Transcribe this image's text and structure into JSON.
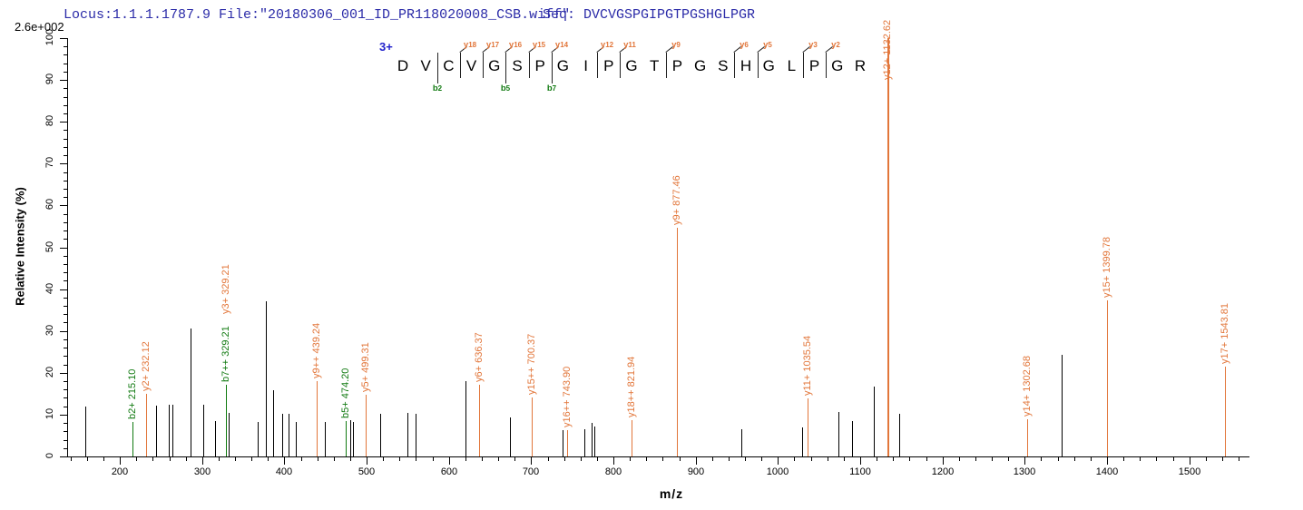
{
  "header": {
    "locus_file": "Locus:1.1.1.1787.9 File:\"20180306_001_ID_PR118020008_CSB.wiff\"",
    "seq": "Seq: DVCVGSPGIPGTPGSHGLPGR",
    "max_intensity": "2.6e+002"
  },
  "peptide": {
    "charge": "3+",
    "residues": [
      "D",
      "V",
      "C",
      "V",
      "G",
      "S",
      "P",
      "G",
      "I",
      "P",
      "G",
      "T",
      "P",
      "G",
      "S",
      "H",
      "G",
      "L",
      "P",
      "G",
      "R"
    ],
    "y_ions": [
      {
        "label": "y18",
        "gap": 2
      },
      {
        "label": "y17",
        "gap": 3
      },
      {
        "label": "y16",
        "gap": 4
      },
      {
        "label": "y15",
        "gap": 5
      },
      {
        "label": "y14",
        "gap": 6
      },
      {
        "label": "y12",
        "gap": 8
      },
      {
        "label": "y11",
        "gap": 9
      },
      {
        "label": "y9",
        "gap": 11
      },
      {
        "label": "y6",
        "gap": 14
      },
      {
        "label": "y5",
        "gap": 15
      },
      {
        "label": "y3",
        "gap": 17
      },
      {
        "label": "y2",
        "gap": 18
      }
    ],
    "b_ions": [
      {
        "label": "b2",
        "gap": 1
      },
      {
        "label": "b5",
        "gap": 4
      },
      {
        "label": "b7",
        "gap": 6
      }
    ]
  },
  "axes": {
    "x_label": "m/z",
    "y_label": "Relative  Intensity (%)",
    "x_major_ticks": [
      200,
      300,
      400,
      500,
      600,
      700,
      800,
      900,
      1000,
      1100,
      1200,
      1300,
      1400,
      1500
    ],
    "x_minor_step": 20,
    "y_major_ticks": [
      0,
      10,
      20,
      30,
      40,
      50,
      60,
      70,
      80,
      90,
      100
    ],
    "y_minor_step": 2,
    "x_range": [
      137,
      1571
    ],
    "y_range": [
      0,
      100
    ]
  },
  "colors": {
    "y_ion": "#e2763a",
    "b_ion": "#117a11",
    "peak": "#000000",
    "axis": "#000000",
    "header_text": "#2b2ba8",
    "charge": "#2222cc",
    "mark": "#222222"
  },
  "chart_data": {
    "type": "bar",
    "xlabel": "m/z",
    "ylabel": "Relative Intensity (%)",
    "xlim": [
      137,
      1571
    ],
    "ylim": [
      0,
      100
    ],
    "base_peak_absolute_intensity": "2.6e+002",
    "labeled_peaks": [
      {
        "mz": 215.1,
        "intensity": 8.3,
        "line": "b",
        "labels": [
          {
            "text": "b2+ 215.10",
            "type": "b"
          }
        ]
      },
      {
        "mz": 232.12,
        "intensity": 15.0,
        "line": "y",
        "labels": [
          {
            "text": "y2+ 232.12",
            "type": "y"
          }
        ]
      },
      {
        "mz": 329.21,
        "intensity": 17.2,
        "line": "b",
        "labels": [
          {
            "text": "b7++ 329.21",
            "type": "b"
          },
          {
            "text": "y3+ 329.21",
            "type": "y"
          }
        ]
      },
      {
        "mz": 439.24,
        "intensity": 18.0,
        "line": "y",
        "labels": [
          {
            "text": "y9++ 439.24",
            "type": "y"
          }
        ]
      },
      {
        "mz": 474.2,
        "intensity": 8.4,
        "line": "b",
        "labels": [
          {
            "text": "b5+ 474.20",
            "type": "b"
          }
        ]
      },
      {
        "mz": 499.31,
        "intensity": 14.7,
        "line": "y",
        "labels": [
          {
            "text": "y5+ 499.31",
            "type": "y"
          }
        ]
      },
      {
        "mz": 636.37,
        "intensity": 17.1,
        "line": "y",
        "labels": [
          {
            "text": "y6+ 636.37",
            "type": "y"
          }
        ]
      },
      {
        "mz": 700.37,
        "intensity": 14.0,
        "line": "y",
        "labels": [
          {
            "text": "y15++ 700.37",
            "type": "y"
          }
        ]
      },
      {
        "mz": 743.9,
        "intensity": 6.2,
        "line": "y",
        "labels": [
          {
            "text": "y16++ 743.90",
            "type": "y"
          }
        ]
      },
      {
        "mz": 821.94,
        "intensity": 8.6,
        "line": "y",
        "labels": [
          {
            "text": "y18++ 821.94",
            "type": "y"
          }
        ]
      },
      {
        "mz": 877.46,
        "intensity": 54.7,
        "line": "y",
        "labels": [
          {
            "text": "y9+ 877.46",
            "type": "y"
          }
        ]
      },
      {
        "mz": 1035.54,
        "intensity": 13.8,
        "line": "y",
        "labels": [
          {
            "text": "y11+ 1035.54",
            "type": "y"
          }
        ]
      },
      {
        "mz": 1132.62,
        "intensity": 100.0,
        "line": "y",
        "labels": [
          {
            "text": "y12+ 1132.62",
            "type": "y"
          }
        ]
      },
      {
        "mz": 1302.68,
        "intensity": 9.0,
        "line": "y",
        "labels": [
          {
            "text": "y14+ 1302.68",
            "type": "y"
          }
        ]
      },
      {
        "mz": 1399.78,
        "intensity": 37.4,
        "line": "y",
        "labels": [
          {
            "text": "y15+ 1399.78",
            "type": "y"
          }
        ]
      },
      {
        "mz": 1543.81,
        "intensity": 21.4,
        "line": "y",
        "labels": [
          {
            "text": "y17+ 1543.81",
            "type": "y"
          }
        ]
      }
    ],
    "unlabeled_peaks": [
      [
        158,
        12.0
      ],
      [
        244,
        12.2
      ],
      [
        259,
        12.3
      ],
      [
        264,
        12.3
      ],
      [
        286,
        30.5
      ],
      [
        301,
        12.3
      ],
      [
        316,
        8.4
      ],
      [
        332,
        10.5
      ],
      [
        368,
        8.3
      ],
      [
        377,
        37.2
      ],
      [
        386,
        15.8
      ],
      [
        397,
        10.1
      ],
      [
        405,
        10.2
      ],
      [
        414,
        8.3
      ],
      [
        449,
        8.3
      ],
      [
        480,
        8.7
      ],
      [
        483,
        8.2
      ],
      [
        516,
        10.2
      ],
      [
        550,
        10.4
      ],
      [
        560,
        10.3
      ],
      [
        620,
        18.0
      ],
      [
        674,
        9.3
      ],
      [
        738,
        6.3
      ],
      [
        765,
        6.5
      ],
      [
        774,
        8.1
      ],
      [
        777,
        7.2
      ],
      [
        956,
        6.5
      ],
      [
        1029,
        7.0
      ],
      [
        1073,
        10.6
      ],
      [
        1090,
        8.4
      ],
      [
        1116,
        16.6
      ],
      [
        1134,
        7.0
      ],
      [
        1147,
        10.2
      ],
      [
        1345,
        24.3
      ]
    ]
  }
}
